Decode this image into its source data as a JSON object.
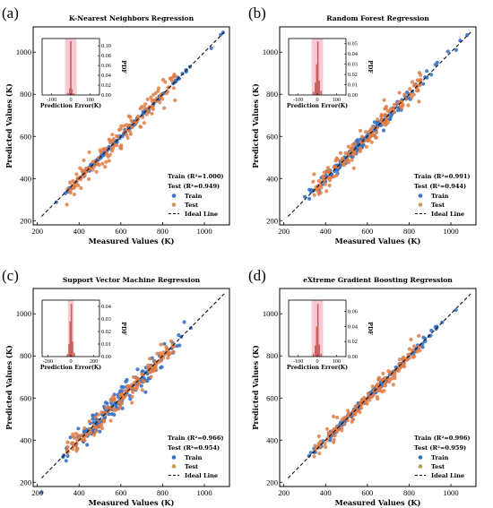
{
  "colors": {
    "train": "#3a72c2",
    "test": "#e17c45",
    "test_legend": "#c49a57",
    "ideal": "#111111",
    "hist_band": "#f7c9d3",
    "hist_bar": "#c9605a"
  },
  "legend": {
    "train": "Train",
    "test": "Test",
    "ideal": "Ideal Line"
  },
  "chart_data": [
    {
      "type": "scatter",
      "panel_label": "(a)",
      "title": "K-Nearest Neighbors Regression",
      "xlabel": "Measured  Values (K)",
      "ylabel": "Predicted  Values (K)",
      "xlim": [
        180,
        1120
      ],
      "ylim": [
        180,
        1120
      ],
      "xticks": [
        200,
        400,
        600,
        800,
        1000
      ],
      "yticks": [
        200,
        400,
        600,
        800,
        1000
      ],
      "metrics": {
        "train": "Train (R²=1.000)",
        "test": "Test (R²=0.949)"
      },
      "train_noise": 5,
      "test_noise": 32,
      "inset": {
        "xlabel": "Prediction Error(K)",
        "ylabel": "PDF",
        "xlim": [
          -150,
          150
        ],
        "xticks": [
          -100,
          0,
          100
        ],
        "ylim": [
          0,
          0.115
        ],
        "yticks": [
          0.0,
          0.02,
          0.04,
          0.06,
          0.08,
          0.1
        ],
        "ytick_labels": [
          "0.00",
          "0.02",
          "0.04",
          "0.06",
          "0.08",
          "0.10"
        ],
        "band": [
          -30,
          30
        ],
        "bars": [
          {
            "x": -15,
            "v": 0.004
          },
          {
            "x": -5,
            "v": 0.014
          },
          {
            "x": 0,
            "v": 0.11
          },
          {
            "x": 5,
            "v": 0.012
          },
          {
            "x": 15,
            "v": 0.003
          }
        ]
      }
    },
    {
      "type": "scatter",
      "panel_label": "(b)",
      "title": "Random Forest Regression",
      "xlabel": "Measured  Values (K)",
      "ylabel": "Predicted  Values (K)",
      "xlim": [
        180,
        1120
      ],
      "ylim": [
        180,
        1120
      ],
      "xticks": [
        200,
        400,
        600,
        800,
        1000
      ],
      "yticks": [
        200,
        400,
        600,
        800,
        1000
      ],
      "metrics": {
        "train": "Train (R²=0.991)",
        "test": "Test (R²=0.944)"
      },
      "train_noise": 14,
      "test_noise": 28,
      "inset": {
        "xlabel": "Prediction Error(K)",
        "ylabel": "PDF",
        "xlim": [
          -150,
          150
        ],
        "xticks": [
          -100,
          0,
          100
        ],
        "ylim": [
          0,
          0.055
        ],
        "yticks": [
          0.0,
          0.01,
          0.02,
          0.03,
          0.04,
          0.05
        ],
        "ytick_labels": [
          "0.00",
          "0.01",
          "0.02",
          "0.03",
          "0.04",
          "0.05"
        ],
        "band": [
          -30,
          30
        ],
        "bars": [
          {
            "x": -20,
            "v": 0.003
          },
          {
            "x": -10,
            "v": 0.012
          },
          {
            "x": -3,
            "v": 0.03
          },
          {
            "x": 3,
            "v": 0.052
          },
          {
            "x": 10,
            "v": 0.014
          },
          {
            "x": 20,
            "v": 0.004
          }
        ]
      }
    },
    {
      "type": "scatter",
      "panel_label": "(c)",
      "title": "Support Vector Machine Regression",
      "xlabel": "Measured  Values (K)",
      "ylabel": "Predicted  Values (K)",
      "xlim": [
        180,
        1120
      ],
      "ylim": [
        180,
        1120
      ],
      "xticks": [
        200,
        400,
        600,
        800,
        1000
      ],
      "yticks": [
        200,
        400,
        600,
        800,
        1000
      ],
      "metrics": {
        "train": "Train (R²=0.966)",
        "test": "Test (R²=0.954)"
      },
      "train_noise": 28,
      "test_noise": 28,
      "inset": {
        "xlabel": "Prediction Error(K)",
        "ylabel": "PDF",
        "xlim": [
          -250,
          250
        ],
        "xticks": [
          -200,
          0,
          200
        ],
        "ylim": [
          0,
          0.045
        ],
        "yticks": [
          0.0,
          0.01,
          0.02,
          0.03,
          0.04
        ],
        "ytick_labels": [
          "0.00",
          "0.01",
          "0.02",
          "0.03",
          "0.04"
        ],
        "band": [
          -25,
          25
        ],
        "bars": [
          {
            "x": -30,
            "v": 0.002
          },
          {
            "x": -15,
            "v": 0.01
          },
          {
            "x": -5,
            "v": 0.028
          },
          {
            "x": 5,
            "v": 0.042
          },
          {
            "x": 15,
            "v": 0.012
          },
          {
            "x": 30,
            "v": 0.003
          }
        ]
      }
    },
    {
      "type": "scatter",
      "panel_label": "(d)",
      "title": "eXtreme Gradient Boosting Regression",
      "xlabel": "Measured  Values (K)",
      "ylabel": "Predicted  Values (K)",
      "xlim": [
        180,
        1120
      ],
      "ylim": [
        180,
        1120
      ],
      "xticks": [
        200,
        400,
        600,
        800,
        1000
      ],
      "yticks": [
        200,
        400,
        600,
        800,
        1000
      ],
      "metrics": {
        "train": "Train (R²=0.996)",
        "test": "Test (R²=0.959)"
      },
      "train_noise": 9,
      "test_noise": 26,
      "inset": {
        "xlabel": "Prediction Error(K)",
        "ylabel": "PDF",
        "xlim": [
          -150,
          150
        ],
        "xticks": [
          -100,
          0,
          100
        ],
        "ylim": [
          0,
          0.075
        ],
        "yticks": [
          0.0,
          0.02,
          0.04,
          0.06
        ],
        "ytick_labels": [
          "0.00",
          "0.02",
          "0.04",
          "0.06"
        ],
        "band": [
          -30,
          30
        ],
        "bars": [
          {
            "x": -20,
            "v": 0.004
          },
          {
            "x": -10,
            "v": 0.015
          },
          {
            "x": -3,
            "v": 0.04
          },
          {
            "x": 3,
            "v": 0.07
          },
          {
            "x": 10,
            "v": 0.016
          },
          {
            "x": 20,
            "v": 0.004
          }
        ]
      }
    }
  ]
}
